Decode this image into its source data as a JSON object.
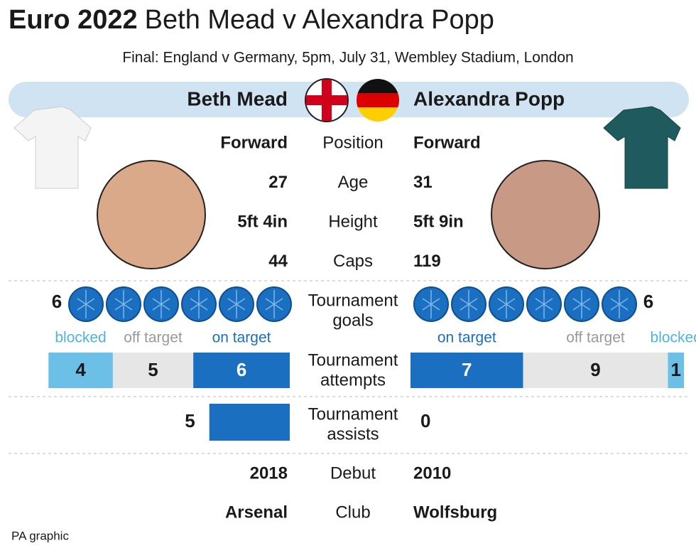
{
  "header": {
    "title_bold": "Euro 2022",
    "title_rest": "Beth Mead v Alexandra Popp",
    "subtitle": "Final: England v Germany, 5pm, July 31, Wembley Stadium, London"
  },
  "players": {
    "left": "Beth Mead",
    "right": "Alexandra Popp"
  },
  "rows": [
    {
      "label": "Position",
      "left": "Forward",
      "right": "Forward"
    },
    {
      "label": "Age",
      "left": "27",
      "right": "31"
    },
    {
      "label": "Height",
      "left": "5ft 4in",
      "right": "5ft 9in"
    },
    {
      "label": "Caps",
      "left": "44",
      "right": "119"
    }
  ],
  "goals": {
    "label_lines": [
      "Tournament",
      "goals"
    ],
    "left": 6,
    "right": 6
  },
  "attempts": {
    "label_lines": [
      "Tournament",
      "attempts"
    ],
    "left": [
      {
        "label": "on target",
        "value": 6
      },
      {
        "label": "off target",
        "value": 5
      },
      {
        "label": "blocked",
        "value": 4
      }
    ],
    "right": [
      {
        "label": "on target",
        "value": 7
      },
      {
        "label": "off target",
        "value": 9
      },
      {
        "label": "blocked",
        "value": 1
      }
    ]
  },
  "assists": {
    "label_lines": [
      "Tournament",
      "assists"
    ],
    "left": 5,
    "right": 0
  },
  "rows2": [
    {
      "label": "Debut",
      "left": "2018",
      "right": "2010"
    },
    {
      "label": "Club",
      "left": "Arsenal",
      "right": "Wolfsburg"
    }
  ],
  "footer": "PA graphic"
}
